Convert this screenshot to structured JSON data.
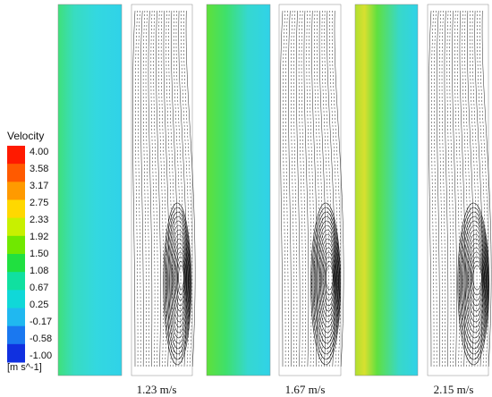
{
  "colorbar": {
    "title": "Velocity",
    "ticks": [
      "4.00",
      "3.58",
      "3.17",
      "2.75",
      "2.33",
      "1.92",
      "1.50",
      "1.08",
      "0.67",
      "0.25",
      "-0.17",
      "-0.58",
      "-1.00"
    ],
    "unit": "[m s^-1]"
  },
  "panels": [
    {
      "caption": "1.23 m/s"
    },
    {
      "caption": "1.67 m/s"
    },
    {
      "caption": "2.15 m/s"
    }
  ]
}
